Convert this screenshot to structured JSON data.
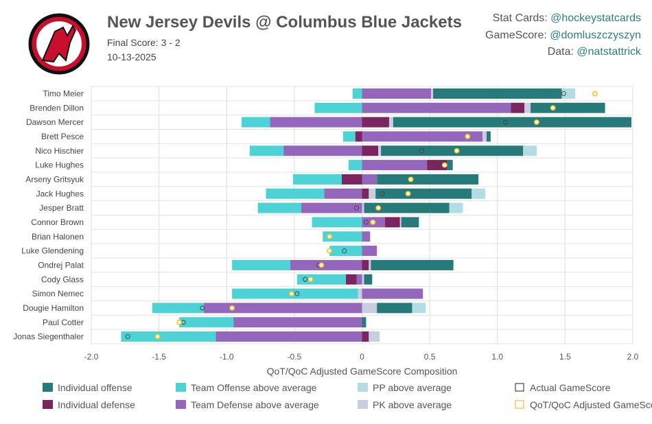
{
  "header": {
    "title": "New Jersey Devils @ Columbus Blue Jackets",
    "final_score": "Final Score: 3 - 2",
    "date": "10-13-2025",
    "logo_text": "NJ Devils logo",
    "credits": [
      {
        "label": "Stat Cards: ",
        "handle": "@hockeystatcards"
      },
      {
        "label": "GameScore: ",
        "handle": "@domluszczyszyn"
      },
      {
        "label": "Data: ",
        "handle": "@natstattrick"
      }
    ]
  },
  "colors": {
    "indiv_off": "#267a7a",
    "team_off": "#4dd3d6",
    "pp": "#b1dde3",
    "indiv_def": "#7a2460",
    "team_def": "#9467bd",
    "pk": "#c8cde0",
    "actual": "#444444",
    "adjusted": "#f0c030"
  },
  "chart_data": {
    "type": "bar",
    "orientation": "horizontal-stacked",
    "xlabel": "QoT/QoC Adjusted GameScore Composition",
    "xlim": [
      -2.0,
      2.0
    ],
    "xticks": [
      "-2.0",
      "-1.5",
      "-1.0",
      "-0.5",
      "0",
      "0.5",
      "1.0",
      "1.5",
      "2.0"
    ],
    "grid": true,
    "legend_position": "bottom",
    "legend": [
      {
        "key": "indiv_off",
        "label": "Individual offense"
      },
      {
        "key": "team_off",
        "label": "Team Offense above average"
      },
      {
        "key": "pp",
        "label": "PP above average"
      },
      {
        "key": "actual",
        "label": "Actual GameScore"
      },
      {
        "key": "indiv_def",
        "label": "Individual defense"
      },
      {
        "key": "team_def",
        "label": "Team Defense above average"
      },
      {
        "key": "pk",
        "label": "PK above average"
      },
      {
        "key": "adjusted",
        "label": "QoT/QoC Adjusted GameScore"
      }
    ],
    "players": [
      {
        "name": "Timo Meier",
        "team_def": 0.51,
        "indiv_def": 0,
        "pk": 0.015,
        "indiv_off": 0.95,
        "team_off": -0.07,
        "pp": 0.1,
        "actual": 1.49,
        "adjusted": 1.72
      },
      {
        "name": "Brenden Dillon",
        "team_def": 1.1,
        "indiv_def": 0.1,
        "pk": 0.045,
        "indiv_off": 0.55,
        "team_off": -0.35,
        "pp": 0,
        "actual": 1.41,
        "adjusted": 1.41
      },
      {
        "name": "Dawson Mercer",
        "team_def": -0.68,
        "indiv_def": 0.2,
        "pk": 0.03,
        "indiv_off": 1.76,
        "team_off": -0.21,
        "pp": 0,
        "actual": 1.06,
        "adjusted": 1.29
      },
      {
        "name": "Brett Pesce",
        "team_def": 0.89,
        "indiv_def": -0.05,
        "pk": 0.03,
        "indiv_off": 0.03,
        "team_off": -0.09,
        "pp": 0,
        "actual": 0.78,
        "adjusted": 0.78
      },
      {
        "name": "Nico Hischier",
        "team_def": -0.58,
        "indiv_def": 0.12,
        "pk": 0.02,
        "indiv_off": 1.05,
        "team_off": -0.25,
        "pp": 0.1,
        "actual": 0.44,
        "adjusted": 0.7
      },
      {
        "name": "Luke Hughes",
        "team_def": 0.48,
        "indiv_def": 0.15,
        "pk": 0,
        "indiv_off": 0.04,
        "team_off": -0.1,
        "pp": 0,
        "actual": 0.57,
        "adjusted": 0.61
      },
      {
        "name": "Arseny Gritsyuk",
        "team_def": 0.11,
        "indiv_def": -0.15,
        "pk": 0,
        "indiv_off": 0.75,
        "team_off": -0.36,
        "pp": 0,
        "actual": 0.36,
        "adjusted": 0.36
      },
      {
        "name": "Jack Hughes",
        "team_def": -0.28,
        "indiv_def": 0.05,
        "pk": 0.05,
        "indiv_off": 0.71,
        "team_off": -0.43,
        "pp": 0.1,
        "actual": 0.15,
        "adjusted": 0.34
      },
      {
        "name": "Jesper Bratt",
        "team_def": -0.45,
        "indiv_def": 0,
        "pk": 0.015,
        "indiv_off": 0.63,
        "team_off": -0.32,
        "pp": 0.1,
        "actual": -0.04,
        "adjusted": 0.12
      },
      {
        "name": "Connor Brown",
        "team_def": 0.17,
        "indiv_def": 0.11,
        "pk": 0.01,
        "indiv_off": 0.13,
        "team_off": -0.37,
        "pp": 0,
        "actual": 0.03,
        "adjusted": 0.08
      },
      {
        "name": "Brian Halonen",
        "team_def": 0.06,
        "indiv_def": 0,
        "pk": 0,
        "indiv_off": 0,
        "team_off": -0.29,
        "pp": 0,
        "actual": -0.24,
        "adjusted": -0.24
      },
      {
        "name": "Luke Glendening",
        "team_def": 0.11,
        "indiv_def": 0,
        "pk": 0,
        "indiv_off": 0,
        "team_off": -0.24,
        "pp": 0,
        "actual": -0.13,
        "adjusted": -0.24
      },
      {
        "name": "Ondrej Palat",
        "team_def": -0.53,
        "indiv_def": 0.05,
        "pk": 0.015,
        "indiv_off": 0.61,
        "team_off": -0.43,
        "pp": 0,
        "actual": -0.32,
        "adjusted": -0.3
      },
      {
        "name": "Cody Glass",
        "team_def": -0.04,
        "indiv_def": -0.08,
        "pk": 0.015,
        "indiv_off": 0.06,
        "team_off": -0.36,
        "pp": 0,
        "actual": -0.42,
        "adjusted": -0.38
      },
      {
        "name": "Simon Nemec",
        "team_def": 0.45,
        "indiv_def": 0,
        "pk": -0.03,
        "indiv_off": 0,
        "team_off": -0.93,
        "pp": 0,
        "actual": -0.48,
        "adjusted": -0.52
      },
      {
        "name": "Dougie Hamilton",
        "team_def": -1.17,
        "indiv_def": 0,
        "pk": 0.11,
        "indiv_off": 0.26,
        "team_off": -0.38,
        "pp": 0.1,
        "actual": -1.18,
        "adjusted": -0.96
      },
      {
        "name": "Paul Cotter",
        "team_def": -0.95,
        "indiv_def": 0,
        "pk": 0,
        "indiv_off": 0.03,
        "team_off": -0.4,
        "pp": 0,
        "actual": -1.32,
        "adjusted": -1.35
      },
      {
        "name": "Jonas Siegenthaler",
        "team_def": -1.08,
        "indiv_def": 0.05,
        "pk": 0.08,
        "indiv_off": 0,
        "team_off": -0.7,
        "pp": 0,
        "actual": -1.73,
        "adjusted": -1.51
      }
    ]
  }
}
